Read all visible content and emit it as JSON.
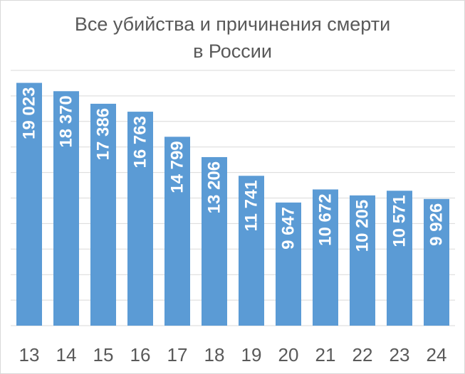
{
  "chart_data": {
    "type": "bar",
    "title_lines": [
      "Все убийства и причинения смерти",
      "в России"
    ],
    "categories": [
      "13",
      "14",
      "15",
      "16",
      "17",
      "18",
      "19",
      "20",
      "21",
      "22",
      "23",
      "24"
    ],
    "values": [
      19023,
      18370,
      17386,
      16763,
      14799,
      13206,
      11741,
      9647,
      10672,
      10205,
      10571,
      9926
    ],
    "value_labels": [
      "19 023",
      "18 370",
      "17 386",
      "16 763",
      "14 799",
      "13 206",
      "11 741",
      "9 647",
      "10 672",
      "10 205",
      "10 571",
      "9 926"
    ],
    "ylim": [
      0,
      20000
    ],
    "grid": true,
    "bar_color": "#5b9bd5",
    "grid_color": "#d9d9d9",
    "text_color": "#595959"
  }
}
